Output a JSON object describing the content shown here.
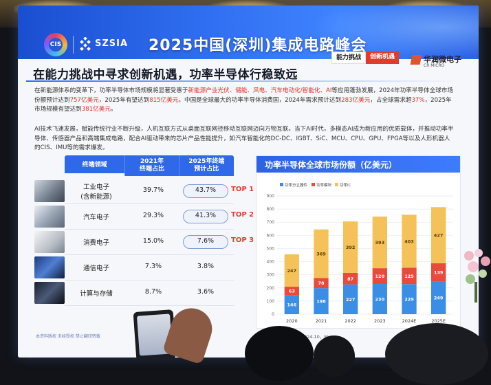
{
  "banner": {
    "logo_text": "CIS",
    "org": "SZSIA",
    "title": "2025中国(深圳)集成电路峰会"
  },
  "tags": [
    "能力挑战",
    "创新机遇"
  ],
  "vendor": {
    "name": "华润微电子",
    "sub": "CR MICRO"
  },
  "heading": "在能力挑战中寻求创新机遇，功率半导体行稳致远",
  "para1": {
    "a": "在新能源体系的变革下，功率半导体市场规模将显著受惠于",
    "b": "新能源产业光伏、储能、风电、汽车电动化/智能化、AI",
    "c": "等应用蓬勃发展，2024年功率半导体全球市场份额预计达到",
    "d": "757亿美元",
    "e": "，2025年有望达到",
    "f": "815亿美元",
    "g": "。中国是全球最大的功率半导体消费国，2024年需求预计达到",
    "h": "283亿美元",
    "i": "，占全球需求超",
    "j": "37%",
    "k": "，2025年市场规模有望达到",
    "l": "381亿美元",
    "m": "。"
  },
  "para2": "AI技术飞速发展，赋能传统行业不断升级，人机互联方式从桌面互联网径移动互联网迈向万物互联。当下AI时代，多模态AI成为新应用的优质载体，并推动功率半导体、传感器产品和高端集成电路，配合AI驱动带来的芯片产品性能提升，如汽车智能化的DC-DC、IGBT、SiC、MCU、CPU、GPU、FPGA等以及人形机器人的CIS、IMU等的需求爆发。",
  "table": {
    "headers": [
      "终端领域",
      "2021年\n终端占比",
      "2025年终端\n预计占比"
    ],
    "rows": [
      {
        "name": "工业电子\n(含新能源)",
        "v2021": "39.7%",
        "v2025": "43.7%",
        "top": "TOP 1"
      },
      {
        "name": "汽车电子",
        "v2021": "29.3%",
        "v2025": "41.3%",
        "top": "TOP 2"
      },
      {
        "name": "消费电子",
        "v2021": "15.0%",
        "v2025": "7.6%",
        "top": "TOP 3"
      },
      {
        "name": "通信电子",
        "v2021": "7.3%",
        "v2025": "3.8%",
        "top": ""
      },
      {
        "name": "计算与存储",
        "v2021": "8.7%",
        "v2025": "3.6%",
        "top": ""
      }
    ]
  },
  "chart_data": {
    "type": "bar",
    "stacked": true,
    "title": "功率半导体全球市场份额（亿美元）",
    "categories": [
      "2020",
      "2021",
      "2022",
      "2023",
      "2024E",
      "2025E"
    ],
    "series": [
      {
        "name": "功率分立器件",
        "color": "#3a8ee6",
        "values": [
          146,
          198,
          227,
          230,
          229,
          249
        ]
      },
      {
        "name": "功率模块",
        "color": "#e84a3c",
        "values": [
          63,
          78,
          87,
          120,
          125,
          139
        ]
      },
      {
        "name": "功率IC",
        "color": "#f5c25a",
        "values": [
          247,
          369,
          392,
          393,
          403,
          427
        ]
      }
    ],
    "ylim": [
      0,
      900
    ],
    "yticks": [
      0,
      100,
      200,
      300,
      400,
      500,
      600,
      700,
      800,
      900
    ],
    "legend": "top-left",
    "grid": true
  },
  "footer": {
    "left": "本资料版权 未经授权 禁止翻印转载",
    "source": "数据来源：Omdia 2024.10，Meta"
  }
}
